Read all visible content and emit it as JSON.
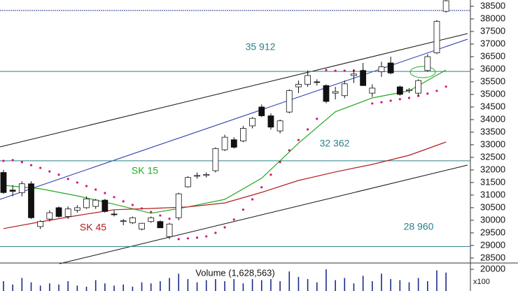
{
  "chart_data": {
    "type": "candlestick",
    "ylim": [
      28330,
      38750
    ],
    "yticks": [
      28500,
      29000,
      29500,
      30000,
      30500,
      31000,
      31500,
      32000,
      32500,
      33000,
      33500,
      34000,
      34500,
      35000,
      35500,
      36000,
      36500,
      37000,
      37500,
      38000,
      38500
    ],
    "candles": {
      "open": [
        31900,
        31200,
        31100,
        31450,
        29750,
        30050,
        30500,
        30150,
        30400,
        30500,
        30550,
        30800,
        30250,
        29950,
        29900,
        29650,
        29950,
        29950,
        29350,
        30100,
        31330,
        31750,
        31780,
        31970,
        32800,
        33200,
        33150,
        33750,
        34500,
        34150,
        33550,
        34300,
        35300,
        35400,
        35500,
        35350,
        35050,
        34950,
        35750,
        35950,
        35050,
        35900,
        36250,
        35300,
        35150,
        35050,
        35950,
        36650,
        38300
      ],
      "high": [
        32000,
        31400,
        31550,
        31550,
        30000,
        30400,
        30550,
        30550,
        30600,
        30950,
        30850,
        30850,
        30400,
        30050,
        30150,
        29900,
        30150,
        30000,
        29900,
        31100,
        31750,
        31900,
        31900,
        32900,
        33400,
        33300,
        33750,
        34100,
        34600,
        34250,
        34000,
        35200,
        35550,
        35950,
        35600,
        35400,
        35300,
        35550,
        36000,
        36250,
        35400,
        36300,
        36500,
        35350,
        35250,
        35600,
        36600,
        37950,
        38750
      ],
      "low": [
        31050,
        30950,
        30950,
        30050,
        29650,
        29950,
        30100,
        30050,
        30300,
        30450,
        30450,
        30300,
        30150,
        29800,
        29850,
        29600,
        29900,
        29700,
        29250,
        30000,
        31300,
        31650,
        31700,
        31900,
        32750,
        32850,
        33100,
        33650,
        34100,
        33600,
        33450,
        34250,
        35050,
        35300,
        35350,
        34650,
        34800,
        34850,
        35450,
        35350,
        34900,
        35700,
        35800,
        34950,
        35050,
        34950,
        35900,
        36600,
        38250
      ],
      "close": [
        31100,
        31150,
        31450,
        30100,
        29950,
        30300,
        30150,
        30450,
        30500,
        30850,
        30800,
        30350,
        30220,
        29980,
        30100,
        29880,
        30100,
        29700,
        29850,
        31050,
        31700,
        31780,
        31820,
        32850,
        33300,
        32900,
        33650,
        34050,
        34150,
        33700,
        33950,
        35150,
        35400,
        35750,
        35480,
        34720,
        35110,
        35420,
        35810,
        35350,
        35250,
        36100,
        35850,
        35000,
        35190,
        35550,
        36500,
        37900,
        38720
      ]
    },
    "series": [
      {
        "name": "SK 15",
        "color": "#22aa22",
        "x": [
          0,
          4,
          8,
          12,
          16,
          20,
          24,
          28,
          32,
          36,
          40,
          44,
          48
        ],
        "values": [
          31390,
          31250,
          30970,
          30640,
          30280,
          30530,
          30830,
          31670,
          33060,
          34310,
          34860,
          35140,
          35970
        ]
      },
      {
        "name": "SK 45",
        "color": "#b02020",
        "x": [
          0,
          4,
          8,
          12,
          16,
          20,
          24,
          28,
          32,
          36,
          40,
          44,
          48
        ],
        "values": [
          29670,
          29940,
          30190,
          30420,
          30470,
          30530,
          30690,
          31110,
          31580,
          31920,
          32220,
          32580,
          33110
        ]
      }
    ],
    "sar": {
      "color": "#d6137a",
      "values": [
        32360,
        32390,
        32310,
        32190,
        32080,
        31940,
        31810,
        31640,
        31500,
        31360,
        31220,
        31080,
        30920,
        30750,
        30610,
        30470,
        30330,
        30190,
        30060,
        29250,
        29280,
        29310,
        29360,
        29500,
        29720,
        30030,
        30420,
        30830,
        31310,
        31810,
        32310,
        32780,
        33190,
        33610,
        34030,
        35970,
        35940,
        35940,
        35940,
        35940,
        34640,
        34690,
        34750,
        34810,
        34860,
        34940,
        35030,
        35140,
        35310
      ]
    },
    "levels": [
      {
        "value": 35912,
        "label": "35 912"
      },
      {
        "value": 32362,
        "label": "32 362"
      },
      {
        "value": 28960,
        "label": "28 960"
      }
    ],
    "level_color": "#2a8088",
    "volume": {
      "label": "Volume (1,628,563)",
      "unit": "x100",
      "color": "#1a2a8a",
      "ylim": [
        0,
        24500
      ],
      "yticks": [
        20000
      ],
      "values": [
        9000,
        6000,
        12000,
        8000,
        5000,
        7000,
        6000,
        9000,
        5000,
        4000,
        10000,
        7000,
        5000,
        6000,
        4000,
        8000,
        7000,
        9000,
        12000,
        16000,
        11000,
        8000,
        10000,
        13000,
        9000,
        14000,
        7000,
        15000,
        10000,
        12000,
        9000,
        18000,
        13000,
        11000,
        8000,
        20000,
        10000,
        12000,
        7000,
        14000,
        9000,
        16000,
        11000,
        10000,
        8000,
        12000,
        9000,
        19000,
        17000
      ]
    }
  }
}
